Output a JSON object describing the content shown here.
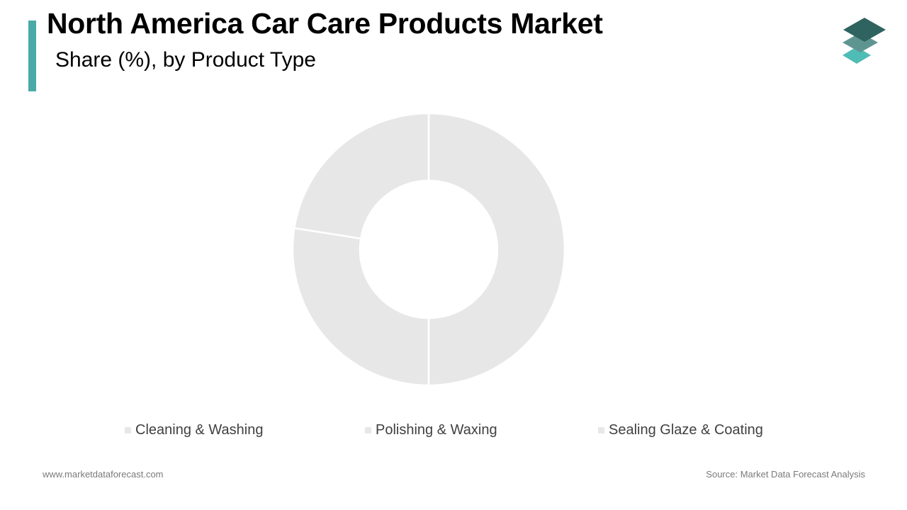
{
  "header": {
    "title": "North America Car Care Products Market",
    "subtitle": "Share (%), by Product Type"
  },
  "colors": {
    "accent": "#4aaaa8",
    "slice_fill": "#e7e7e7",
    "slice_stroke": "#ffffff",
    "legend_swatch": "#e7e7e7",
    "logo_top": "#2f6360",
    "logo_middle": "#5f9591",
    "logo_bottom": "#4fbcb5"
  },
  "logo": {
    "icon": "stacked-layers-icon"
  },
  "chart_data": {
    "type": "pie",
    "variant": "donut",
    "title": "North America Car Care Products Market",
    "subtitle": "Share (%), by Product Type",
    "categories": [
      "Cleaning & Washing",
      "Polishing & Waxing",
      "Sealing Glaze & Coating"
    ],
    "values": [
      50,
      27.5,
      22.5
    ],
    "unit": "%",
    "legend_position": "bottom",
    "data_labels": false
  },
  "footer": {
    "website": "www.marketdataforecast.com",
    "source": "Source: Market Data Forecast Analysis"
  }
}
